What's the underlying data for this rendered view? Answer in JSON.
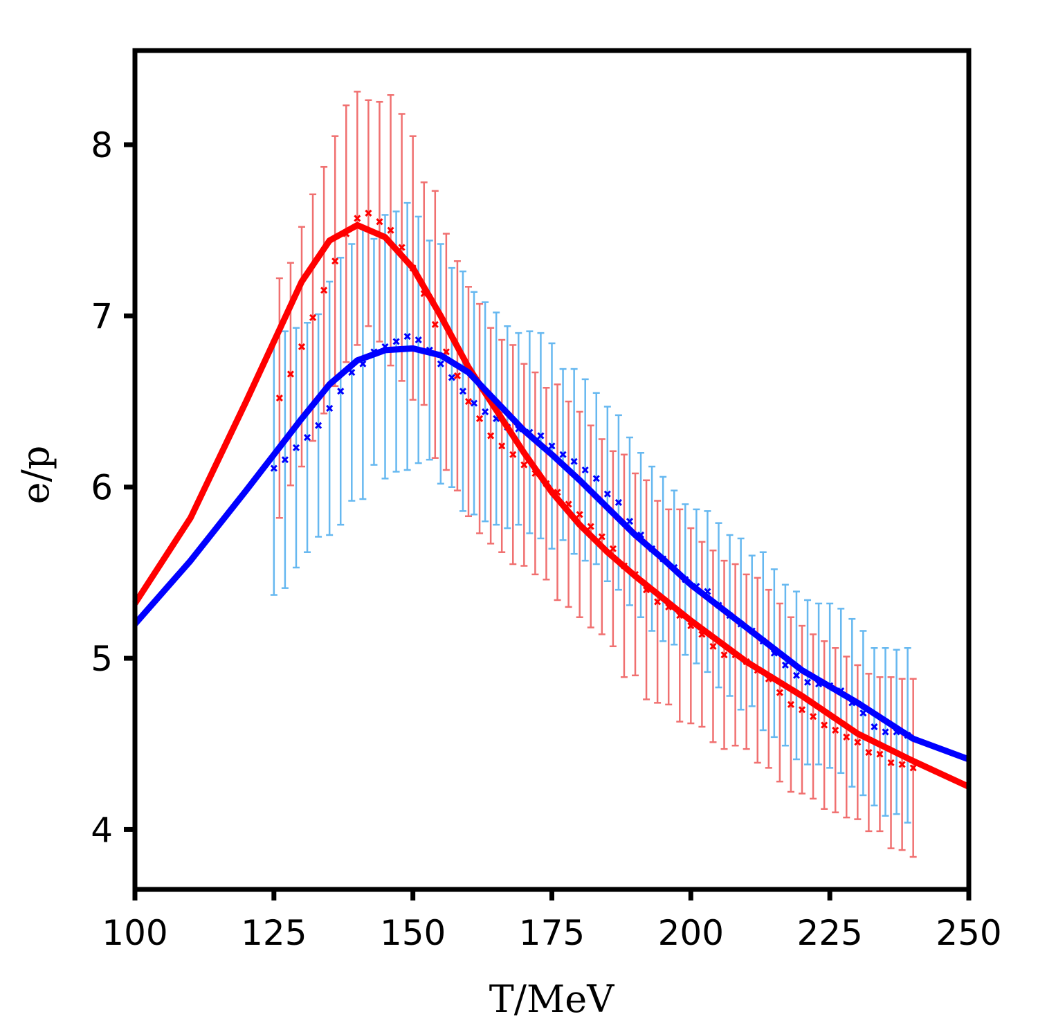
{
  "chart_data": {
    "type": "line",
    "title": "",
    "xlabel": "T/MeV",
    "ylabel": "e/p",
    "xlim": [
      100,
      250
    ],
    "ylim": [
      3.65,
      8.55
    ],
    "xticks": [
      100,
      125,
      150,
      175,
      200,
      225,
      250
    ],
    "yticks": [
      4,
      5,
      6,
      7,
      8
    ],
    "grid": false,
    "legend": "none",
    "colors": {
      "red_curve": "#ff0000",
      "blue_curve": "#0000ff",
      "red_points": "#ff0000",
      "blue_points": "#0000ff",
      "red_errorbars": "#f07070",
      "blue_errorbars": "#66b8f0",
      "axes": "#000000"
    },
    "series": [
      {
        "role": "curve",
        "color": "red",
        "x": [
          100,
          110,
          120,
          130,
          135,
          140,
          145,
          150,
          155,
          160,
          165,
          170,
          175,
          180,
          185,
          190,
          195,
          200,
          210,
          220,
          230,
          240,
          250
        ],
        "y": [
          5.32,
          5.82,
          6.5,
          7.2,
          7.44,
          7.53,
          7.46,
          7.28,
          7.0,
          6.7,
          6.45,
          6.2,
          5.97,
          5.78,
          5.62,
          5.48,
          5.35,
          5.22,
          4.98,
          4.78,
          4.56,
          4.4,
          4.25
        ]
      },
      {
        "role": "curve",
        "color": "blue",
        "x": [
          100,
          110,
          120,
          130,
          135,
          140,
          145,
          150,
          155,
          160,
          165,
          170,
          175,
          180,
          185,
          190,
          195,
          200,
          210,
          220,
          230,
          240,
          250
        ],
        "y": [
          5.2,
          5.57,
          5.98,
          6.4,
          6.6,
          6.74,
          6.8,
          6.81,
          6.77,
          6.67,
          6.5,
          6.33,
          6.19,
          6.04,
          5.88,
          5.72,
          5.58,
          5.43,
          5.18,
          4.93,
          4.74,
          4.53,
          4.41
        ]
      },
      {
        "role": "points",
        "color": "red",
        "x": [
          126,
          128,
          130,
          132,
          134,
          136,
          138,
          140,
          142,
          144,
          146,
          148,
          150,
          152,
          154,
          156,
          158,
          160,
          162,
          164,
          166,
          168,
          170,
          172,
          174,
          176,
          178,
          180,
          182,
          184,
          186,
          188,
          190,
          192,
          194,
          196,
          198,
          200,
          202,
          204,
          206,
          208,
          210,
          212,
          214,
          216,
          218,
          220,
          222,
          224,
          226,
          228,
          230,
          232,
          234,
          236,
          238,
          240
        ],
        "y": [
          6.52,
          6.66,
          6.82,
          6.99,
          7.15,
          7.32,
          7.48,
          7.57,
          7.6,
          7.55,
          7.5,
          7.4,
          7.28,
          7.13,
          6.95,
          6.79,
          6.65,
          6.5,
          6.4,
          6.3,
          6.24,
          6.19,
          6.13,
          6.08,
          6.02,
          5.97,
          5.9,
          5.84,
          5.77,
          5.71,
          5.64,
          5.54,
          5.49,
          5.4,
          5.33,
          5.3,
          5.25,
          5.19,
          5.14,
          5.07,
          5.02,
          5.02,
          4.98,
          4.93,
          4.88,
          4.8,
          4.73,
          4.7,
          4.66,
          4.61,
          4.58,
          4.54,
          4.51,
          4.45,
          4.44,
          4.39,
          4.38,
          4.36
        ],
        "err": [
          0.7,
          0.65,
          0.7,
          0.72,
          0.72,
          0.73,
          0.75,
          0.74,
          0.66,
          0.7,
          0.79,
          0.78,
          0.77,
          0.65,
          0.78,
          0.69,
          0.67,
          0.67,
          0.67,
          0.63,
          0.62,
          0.64,
          0.59,
          0.59,
          0.56,
          0.63,
          0.6,
          0.6,
          0.59,
          0.57,
          0.57,
          0.65,
          0.59,
          0.64,
          0.59,
          0.57,
          0.62,
          0.57,
          0.54,
          0.56,
          0.55,
          0.53,
          0.51,
          0.54,
          0.52,
          0.52,
          0.51,
          0.49,
          0.48,
          0.49,
          0.48,
          0.47,
          0.45,
          0.46,
          0.45,
          0.5,
          0.5,
          0.52
        ]
      },
      {
        "role": "points",
        "color": "blue",
        "x": [
          125,
          127,
          129,
          131,
          133,
          135,
          137,
          139,
          141,
          143,
          145,
          147,
          149,
          151,
          153,
          155,
          157,
          159,
          161,
          163,
          165,
          167,
          169,
          171,
          173,
          175,
          177,
          179,
          181,
          183,
          185,
          187,
          189,
          191,
          193,
          195,
          197,
          199,
          201,
          203,
          205,
          207,
          209,
          211,
          213,
          215,
          217,
          219,
          221,
          223,
          225,
          227,
          229,
          231,
          233,
          235,
          237,
          239
        ],
        "y": [
          6.11,
          6.16,
          6.23,
          6.29,
          6.36,
          6.46,
          6.56,
          6.67,
          6.72,
          6.79,
          6.82,
          6.85,
          6.88,
          6.86,
          6.8,
          6.72,
          6.64,
          6.56,
          6.49,
          6.44,
          6.4,
          6.35,
          6.34,
          6.32,
          6.3,
          6.24,
          6.19,
          6.15,
          6.1,
          6.05,
          5.96,
          5.91,
          5.8,
          5.72,
          5.64,
          5.58,
          5.53,
          5.46,
          5.42,
          5.39,
          5.31,
          5.25,
          5.2,
          5.16,
          5.1,
          5.03,
          4.96,
          4.9,
          4.86,
          4.85,
          4.84,
          4.81,
          4.74,
          4.68,
          4.6,
          4.57,
          4.57,
          4.55
        ],
        "err": [
          0.74,
          0.75,
          0.7,
          0.67,
          0.65,
          0.74,
          0.78,
          0.75,
          0.79,
          0.66,
          0.77,
          0.76,
          0.78,
          0.72,
          0.64,
          0.7,
          0.64,
          0.7,
          0.65,
          0.64,
          0.62,
          0.59,
          0.56,
          0.59,
          0.6,
          0.6,
          0.5,
          0.54,
          0.53,
          0.5,
          0.51,
          0.51,
          0.49,
          0.48,
          0.48,
          0.48,
          0.45,
          0.44,
          0.45,
          0.47,
          0.48,
          0.47,
          0.5,
          0.44,
          0.52,
          0.49,
          0.47,
          0.49,
          0.48,
          0.47,
          0.48,
          0.48,
          0.49,
          0.48,
          0.46,
          0.49,
          0.48,
          0.51
        ]
      }
    ]
  }
}
